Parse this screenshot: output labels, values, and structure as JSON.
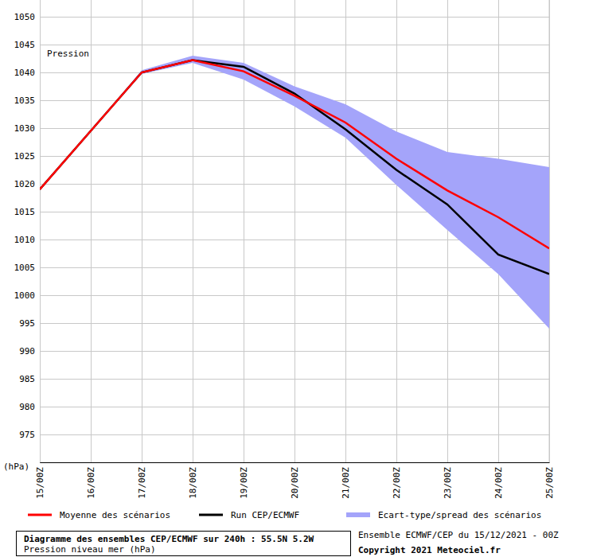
{
  "chart_data": {
    "type": "line",
    "title": "Diagramme des ensembles CEP/ECMWF sur 240h : 55.5N 5.2W",
    "subtitle": "Pression niveau mer (hPa)",
    "y_label": "(hPa)",
    "annotations": [
      "Pression"
    ],
    "credits": [
      "Ensemble ECMWF/CEP du 15/12/2021 - 00Z",
      "Copyright 2021 Meteociel.fr"
    ],
    "categories": [
      "15/00Z",
      "16/00Z",
      "17/00Z",
      "18/00Z",
      "19/00Z",
      "20/00Z",
      "21/00Z",
      "22/00Z",
      "23/00Z",
      "24/00Z",
      "25/00Z"
    ],
    "series": [
      {
        "name": "Moyenne des scénarios",
        "color": "#ff0000",
        "type": "line",
        "values": [
          1019,
          1029.5,
          1040,
          1042.2,
          1040.2,
          1035.8,
          1031,
          1024.5,
          1018.8,
          1014,
          1008.4
        ]
      },
      {
        "name": "Run CEP/ECMWF",
        "color": "#000000",
        "type": "line",
        "values": [
          1019,
          1029.5,
          1040,
          1042.2,
          1041,
          1036.2,
          1029.8,
          1022.5,
          1016.3,
          1007.3,
          1003.8
        ]
      },
      {
        "name": "Ecart-type/spread des scénarios",
        "color": "#a4a4fa",
        "type": "area",
        "upper": [
          1019,
          1029.5,
          1040.4,
          1043,
          1041.7,
          1037.5,
          1034.3,
          1029.4,
          1025.7,
          1024.5,
          1023
        ],
        "lower": [
          1019,
          1029.5,
          1039.7,
          1041.7,
          1038.7,
          1033.9,
          1028.3,
          1019.8,
          1011.7,
          1003.8,
          994
        ]
      }
    ],
    "ylim": [
      970,
      1053
    ],
    "yticks": [
      975,
      980,
      985,
      990,
      995,
      1000,
      1005,
      1010,
      1015,
      1020,
      1025,
      1030,
      1035,
      1040,
      1045,
      1050
    ],
    "grid": true,
    "legend": "bottom"
  }
}
